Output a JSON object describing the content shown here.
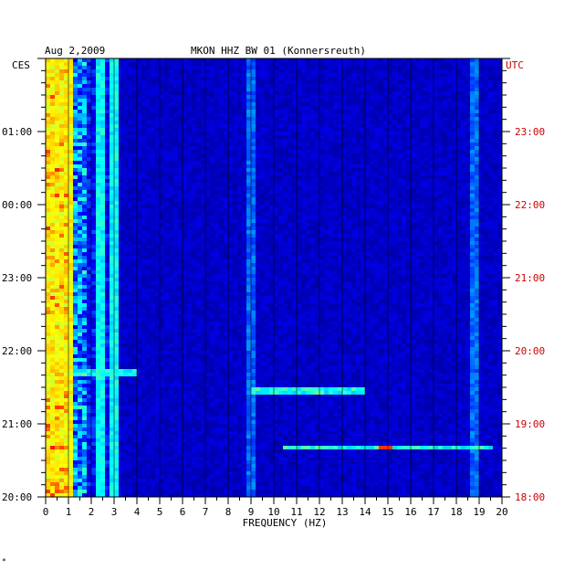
{
  "header": {
    "date": "Aug 2,2009",
    "station": "MKON HHZ BW 01 (Konnersreuth)"
  },
  "axes": {
    "left_tz": "CES",
    "right_tz": "UTC",
    "xlabel": "FREQUENCY (HZ)",
    "left_color": "#000000",
    "right_color": "#cc0000"
  },
  "chart_data": {
    "type": "heatmap",
    "xlabel": "FREQUENCY (HZ)",
    "xlim": [
      0,
      20
    ],
    "x_ticks": [
      "0",
      "1",
      "2",
      "3",
      "4",
      "5",
      "6",
      "7",
      "8",
      "9",
      "10",
      "11",
      "12",
      "13",
      "14",
      "15",
      "16",
      "17",
      "18",
      "19",
      "20"
    ],
    "y_ticks_left": [
      "01:00",
      "00:00",
      "23:00",
      "22:00",
      "21:00",
      "20:00"
    ],
    "y_ticks_right": [
      "23:00",
      "22:00",
      "21:00",
      "20:00",
      "19:00",
      "18:00"
    ],
    "y_tick_hours_from_bottom": [
      5,
      4,
      3,
      2,
      1,
      0
    ],
    "hours_shown": 6,
    "band_features": [
      {
        "freq_range": [
          0,
          1
        ],
        "level": "high",
        "note": "persistent strong low-frequency energy"
      },
      {
        "freq_range": [
          2.3,
          2.4
        ],
        "level": "medium",
        "note": "narrow line"
      },
      {
        "freq_range": [
          3.0,
          3.1
        ],
        "level": "medium",
        "note": "narrow line"
      },
      {
        "freq_range": [
          9.0,
          9.1
        ],
        "level": "low",
        "note": "faint line"
      },
      {
        "freq_range": [
          18.7,
          18.8
        ],
        "level": "low",
        "note": "faint line"
      }
    ],
    "event_rows": [
      {
        "time_from_bottom_h": 1.7,
        "freq_range": [
          0,
          4
        ],
        "level": "medium"
      },
      {
        "time_from_bottom_h": 1.45,
        "freq_range": [
          9,
          14
        ],
        "level": "medium"
      },
      {
        "time_from_bottom_h": 0.67,
        "freq_range": [
          10.5,
          19.5
        ],
        "level": "medium",
        "peak_freq": 15
      }
    ],
    "colorscale": [
      "#000080",
      "#0000ff",
      "#00ffff",
      "#ffff00",
      "#ff0000"
    ],
    "grid": true
  },
  "footnote": "*"
}
